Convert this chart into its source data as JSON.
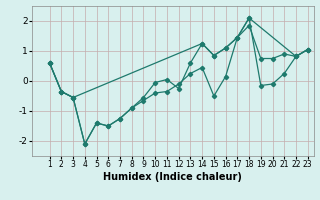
{
  "xlabel": "Humidex (Indice chaleur)",
  "xlim": [
    -0.5,
    23.5
  ],
  "ylim": [
    -2.5,
    2.5
  ],
  "yticks": [
    -2,
    -1,
    0,
    1,
    2
  ],
  "xticks": [
    1,
    2,
    3,
    4,
    5,
    6,
    7,
    8,
    9,
    10,
    11,
    12,
    13,
    14,
    15,
    16,
    17,
    18,
    19,
    20,
    21,
    22,
    23
  ],
  "bg_color": "#d8f0ee",
  "grid_color": "#c4acac",
  "line_color": "#1e7a6d",
  "line1_x": [
    1,
    2,
    3,
    4,
    5,
    6,
    7,
    8,
    9,
    10,
    11,
    12,
    13,
    14,
    15,
    16,
    17,
    18,
    19,
    20,
    21,
    22,
    23
  ],
  "line1_y": [
    0.6,
    -0.35,
    -0.55,
    -2.1,
    -1.4,
    -1.5,
    -1.25,
    -0.9,
    -0.65,
    -0.4,
    -0.35,
    -0.1,
    0.25,
    0.45,
    -0.5,
    0.15,
    1.45,
    1.85,
    0.75,
    0.75,
    0.9,
    0.82,
    1.05
  ],
  "line2_x": [
    1,
    2,
    3,
    4,
    5,
    6,
    7,
    8,
    9,
    10,
    11,
    12,
    13,
    14,
    15,
    16,
    17,
    18,
    19,
    20,
    21,
    22,
    23
  ],
  "line2_y": [
    0.6,
    -0.35,
    -0.55,
    -2.1,
    -1.4,
    -1.5,
    -1.25,
    -0.9,
    -0.55,
    -0.05,
    0.05,
    -0.25,
    0.6,
    1.25,
    0.85,
    1.1,
    1.45,
    2.1,
    -0.15,
    -0.1,
    0.25,
    0.82,
    1.05
  ],
  "line3_x": [
    1,
    2,
    3,
    14,
    15,
    16,
    17,
    18,
    22,
    23
  ],
  "line3_y": [
    0.6,
    -0.35,
    -0.55,
    1.25,
    0.85,
    1.1,
    1.45,
    2.1,
    0.82,
    1.05
  ]
}
